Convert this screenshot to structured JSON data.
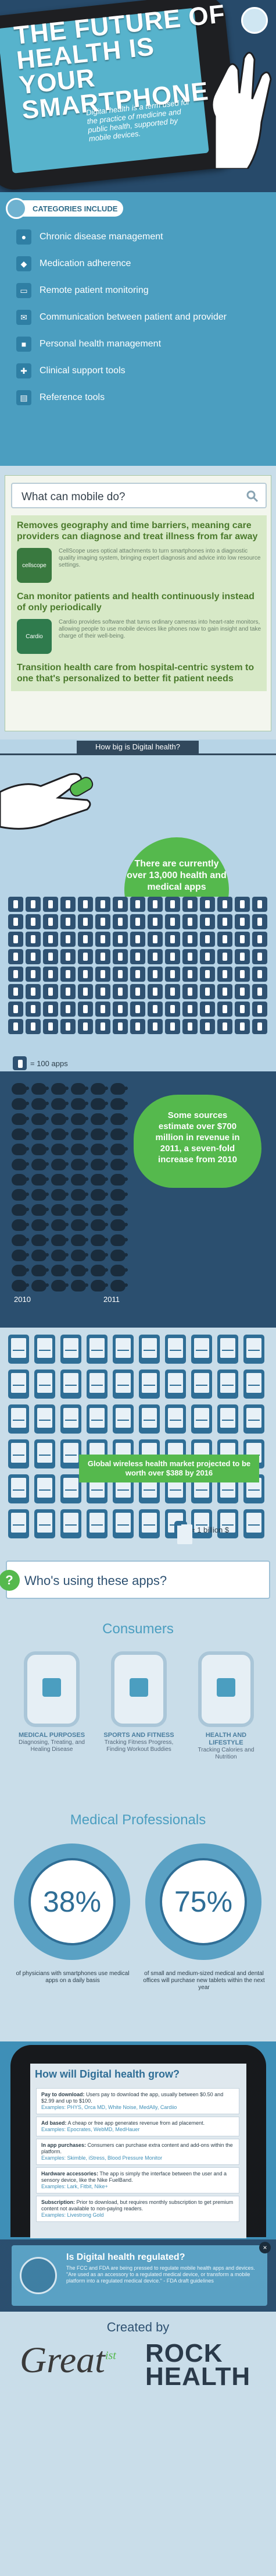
{
  "hero": {
    "title": "THE FUTURE OF HEALTH IS YOUR SMARTPHONE",
    "subtitle": "Digital health is a term used for the practice of medicine and public health, supported by mobile devices."
  },
  "categories": {
    "badge": "CATEGORIES INCLUDE",
    "items": [
      {
        "label": "Chronic disease management",
        "icon": "pill-icon"
      },
      {
        "label": "Medication adherence",
        "icon": "medication-icon"
      },
      {
        "label": "Remote patient monitoring",
        "icon": "monitor-icon"
      },
      {
        "label": "Communication between patient and provider",
        "icon": "chat-icon"
      },
      {
        "label": "Personal health management",
        "icon": "briefcase-icon"
      },
      {
        "label": "Clinical support tools",
        "icon": "cross-icon"
      },
      {
        "label": "Reference tools",
        "icon": "book-icon"
      }
    ]
  },
  "mobile": {
    "search_text": "What can mobile do?",
    "h1": "Removes geography and time barriers, meaning care providers can diagnose and treat illness from far away",
    "brand1_name": "cellscope",
    "brand1_text": "CellScope uses optical attachments to turn smartphones into a diagnostic quality imaging system, bringing expert diagnosis and advice into low resource settings.",
    "h2": "Can monitor patients and health continuously instead of only periodically",
    "brand2_name": "Cardio",
    "brand2_text": "Cardiio provides software that turns ordinary cameras into heart-rate monitors, allowing people to use mobile devices like phones now to gain insight and take charge of their well-being.",
    "h3": "Transition health care from hospital-centric system to one that's personalized to better fit patient needs"
  },
  "howbig": {
    "tab": "How big is Digital health?",
    "bubble": "There are currently over 13,000 health and medical apps",
    "legend": "= 100 apps"
  },
  "revenue": {
    "pig_text": "Some sources estimate over $700 million in revenue in 2011, a seven-fold increase from 2010",
    "year1": "2010",
    "year2": "2011"
  },
  "phones": {
    "market": "Global wireless health market projected to be worth over $388 by 2016",
    "legend": "= 1 billion $"
  },
  "who": {
    "question": "Who's using these apps?"
  },
  "consumers": {
    "title": "Consumers",
    "items": [
      {
        "title": "MEDICAL PURPOSES",
        "sub": "Diagnosing, Treating, and Healing Disease"
      },
      {
        "title": "SPORTS AND FITNESS",
        "sub": "Tracking Fitness Progress, Finding Workout Buddies"
      },
      {
        "title": "HEALTH AND LIFESTYLE",
        "sub": "Tracking Calories and Nutrition"
      }
    ]
  },
  "medpros": {
    "title": "Medical Professionals",
    "stat1": "38%",
    "cap1": "of physicians with smartphones use medical apps on a daily basis",
    "stat2": "75%",
    "cap2": "of small and medium-sized medical and dental offices will purchase new tablets within the next year"
  },
  "grow": {
    "title": "How will Digital health grow?",
    "items": [
      {
        "label": "Pay to download:",
        "text": "Users pay to download the app, usually between $0.50 and $2.99 and up to $100.",
        "ex": "Examples: PHYS, Orca MD, White Noise, MedAlly, Cardiio"
      },
      {
        "label": "Ad based:",
        "text": "A cheap or free app generates revenue from ad placement.",
        "ex": "Examples: Epocrates, WebMD, MedHauer"
      },
      {
        "label": "In app purchases:",
        "text": "Consumers can purchase extra content and add-ons within the platform.",
        "ex": "Examples: Skimble, iStress, Blood Pressure Monitor"
      },
      {
        "label": "Hardware accessories:",
        "text": "The app is simply the interface between the user and a sensory device, like the Nike FuelBand.",
        "ex": "Examples: Lark, Fitbit, Nike+"
      },
      {
        "label": "Subscription:",
        "text": "Prior to download, but requires monthly subscription to get premium content not available to non-paying readers.",
        "ex": "Examples: Livestrong Gold"
      }
    ]
  },
  "fda": {
    "title": "Is Digital health regulated?",
    "text": "The FCC and FDA are being pressed to regulate mobile health apps and devices. \"Are used as an accessory to a regulated medical device, or transform a mobile platform into a regulated medical device.\" - FDA draft guidelines",
    "close": "×"
  },
  "footer": {
    "created_by": "Created by",
    "brand1": "Great",
    "brand1_sup": "ist",
    "brand2_line1": "ROCK",
    "brand2_line2": "HEALTH"
  },
  "colors": {
    "accent": "#55b94d",
    "blue": "#4b9ec0",
    "navy": "#2b4f6f"
  }
}
